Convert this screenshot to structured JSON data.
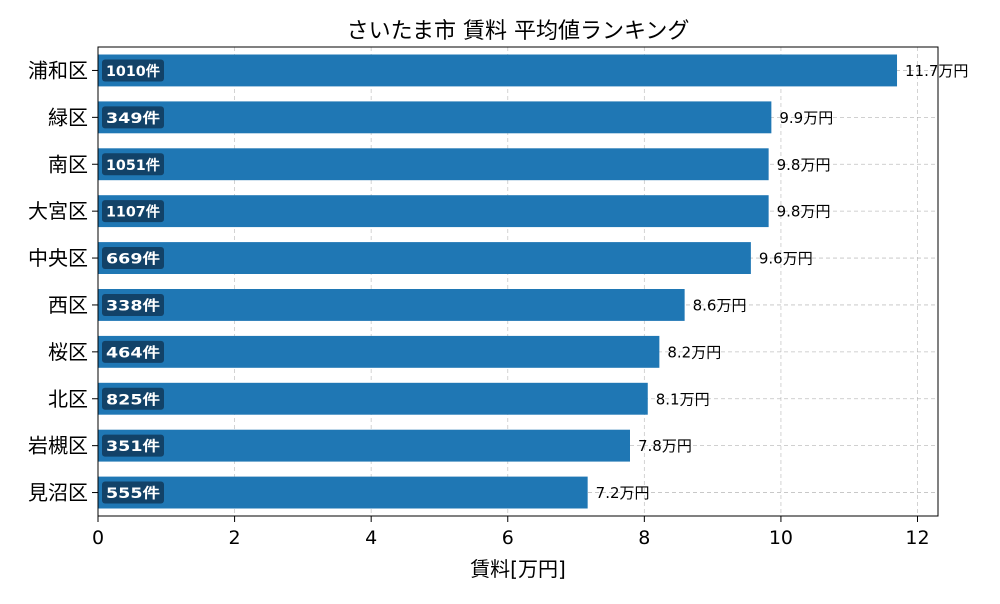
{
  "chart_data": {
    "type": "bar",
    "orientation": "horizontal",
    "title": "さいたま市 賃料 平均値ランキング",
    "xlabel": "賃料[万円]",
    "ylabel": "",
    "xlim": [
      0,
      12.3
    ],
    "xticks": [
      0,
      2,
      4,
      6,
      8,
      10,
      12
    ],
    "grid": true,
    "categories": [
      "浦和区",
      "緑区",
      "南区",
      "大宮区",
      "中央区",
      "西区",
      "桜区",
      "北区",
      "岩槻区",
      "見沼区"
    ],
    "values": [
      11.7,
      9.86,
      9.82,
      9.82,
      9.56,
      8.59,
      8.22,
      8.05,
      7.79,
      7.17
    ],
    "value_labels": [
      "11.7万円",
      "9.9万円",
      "9.8万円",
      "9.8万円",
      "9.6万円",
      "8.6万円",
      "8.2万円",
      "8.1万円",
      "7.8万円",
      "7.2万円"
    ],
    "count_labels": [
      "1010件",
      "349件",
      "1051件",
      "1107件",
      "669件",
      "338件",
      "464件",
      "825件",
      "351件",
      "555件"
    ],
    "colors": {
      "bar": "#1f77b4",
      "badge": "#10385a",
      "grid": "#b0b0b0"
    }
  }
}
